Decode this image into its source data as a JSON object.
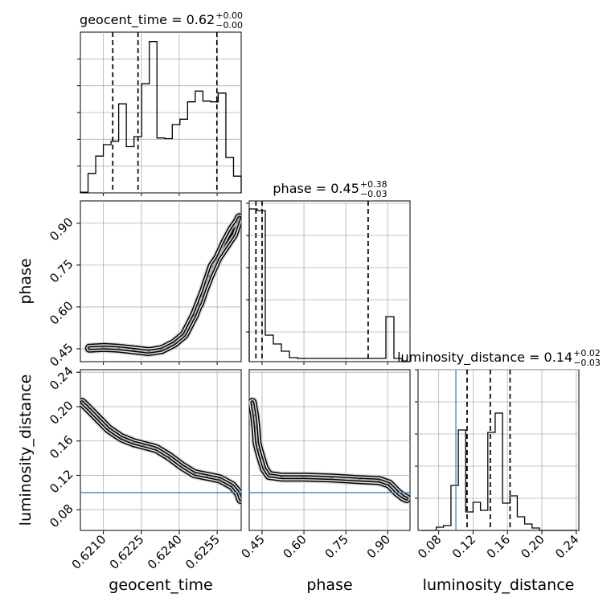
{
  "chart_data": {
    "type": "corner",
    "parameters": [
      "geocent_time",
      "phase",
      "luminosity_distance"
    ],
    "axis_labels": {
      "geocent_time": "geocent_time",
      "phase": "phase",
      "luminosity_distance": "luminosity_distance"
    },
    "titles": [
      {
        "param": "geocent_time",
        "text": "geocent_time = 0.62",
        "plus": "+0.00",
        "minus": "−0.00"
      },
      {
        "param": "phase",
        "text": "phase = 0.45",
        "plus": "+0.38",
        "minus": "−0.03"
      },
      {
        "param": "luminosity_distance",
        "text": "luminosity_distance = 0.14",
        "plus": "+0.02",
        "minus": "−0.03"
      }
    ],
    "ranges": {
      "geocent_time": [
        0.62009,
        0.62645
      ],
      "phase": [
        0.404,
        0.98
      ],
      "luminosity_distance": [
        0.056,
        0.243
      ]
    },
    "ticks": {
      "geocent_time": {
        "values": [
          0.621,
          0.6225,
          0.624,
          0.6255
        ],
        "labels": [
          "0.6210",
          "0.6225",
          "0.6240",
          "0.6255"
        ]
      },
      "phase": {
        "values": [
          0.45,
          0.6,
          0.75,
          0.9
        ],
        "labels": [
          "0.45",
          "0.60",
          "0.75",
          "0.90"
        ]
      },
      "luminosity_distance": {
        "values": [
          0.08,
          0.12,
          0.16,
          0.2,
          0.24
        ],
        "labels": [
          "0.08",
          "0.12",
          "0.16",
          "0.20",
          "0.24"
        ]
      }
    },
    "left_ticks": {
      "phase": {
        "values": [
          0.45,
          0.6,
          0.75,
          0.9
        ],
        "labels": [
          "0.45",
          "0.60",
          "0.75",
          "0.90"
        ]
      },
      "luminosity_distance": {
        "values": [
          0.08,
          0.12,
          0.16,
          0.2,
          0.24
        ],
        "labels": [
          "0.08",
          "0.12",
          "0.16",
          "0.20",
          "0.24"
        ]
      }
    },
    "quantiles": {
      "geocent_time": [
        0.62137,
        0.62237,
        0.62549
      ],
      "phase": [
        0.428,
        0.45,
        0.83
      ],
      "luminosity_distance": [
        0.113,
        0.14,
        0.163
      ]
    },
    "truths": {
      "luminosity_distance": 0.1
    },
    "histograms": {
      "geocent_time": {
        "range": [
          0.62009,
          0.62645
        ],
        "counts": [
          1,
          29,
          55,
          72,
          77,
          133,
          69,
          84,
          163,
          226,
          82,
          81,
          102,
          110,
          136,
          152,
          137,
          136,
          149,
          53,
          25
        ],
        "y_max": 240,
        "y_ticks": [
          40,
          80,
          120,
          160,
          200
        ]
      },
      "phase": {
        "range": [
          0.404,
          0.98
        ],
        "counts": [
          190,
          188,
          33,
          22,
          13,
          5,
          4,
          4,
          4,
          4,
          4,
          4,
          4,
          4,
          4,
          4,
          4,
          56,
          4,
          0
        ],
        "y_max": 200,
        "y_ticks": [
          37,
          77,
          117,
          157,
          197
        ]
      },
      "luminosity_distance": {
        "range": [
          0.06,
          0.24
        ],
        "counts": [
          0,
          0,
          4,
          6,
          56,
          125,
          23,
          35,
          25,
          122,
          146,
          34,
          43,
          17,
          8,
          3,
          0,
          0,
          0,
          0,
          0
        ],
        "y_max": 200,
        "y_ticks": [
          40,
          80,
          120,
          160,
          200
        ]
      }
    },
    "scatter": {
      "phase_vs_geocent_time": [
        [
          0.62045,
          0.452
        ],
        [
          0.621,
          0.455
        ],
        [
          0.6216,
          0.452
        ],
        [
          0.6222,
          0.446
        ],
        [
          0.6228,
          0.44
        ],
        [
          0.6233,
          0.447
        ],
        [
          0.6238,
          0.47
        ],
        [
          0.6242,
          0.5
        ],
        [
          0.6246,
          0.57
        ],
        [
          0.6249,
          0.64
        ],
        [
          0.6252,
          0.71
        ],
        [
          0.6255,
          0.77
        ],
        [
          0.6258,
          0.83
        ],
        [
          0.6261,
          0.88
        ],
        [
          0.6263,
          0.905
        ],
        [
          0.62638,
          0.92
        ],
        [
          0.62615,
          0.86
        ],
        [
          0.6253,
          0.745
        ],
        [
          0.6248,
          0.61
        ]
      ],
      "luminosity_distance_vs_geocent_time": [
        [
          0.62015,
          0.205
        ],
        [
          0.6204,
          0.198
        ],
        [
          0.6208,
          0.186
        ],
        [
          0.6212,
          0.174
        ],
        [
          0.6217,
          0.164
        ],
        [
          0.6222,
          0.158
        ],
        [
          0.6226,
          0.155
        ],
        [
          0.6231,
          0.151
        ],
        [
          0.6236,
          0.142
        ],
        [
          0.6241,
          0.131
        ],
        [
          0.6246,
          0.122
        ],
        [
          0.6251,
          0.119
        ],
        [
          0.6256,
          0.116
        ],
        [
          0.6261,
          0.108
        ],
        [
          0.62635,
          0.099
        ],
        [
          0.62643,
          0.092
        ]
      ],
      "luminosity_distance_vs_phase": [
        [
          0.415,
          0.205
        ],
        [
          0.423,
          0.19
        ],
        [
          0.428,
          0.176
        ],
        [
          0.432,
          0.158
        ],
        [
          0.438,
          0.15
        ],
        [
          0.447,
          0.14
        ],
        [
          0.458,
          0.128
        ],
        [
          0.475,
          0.12
        ],
        [
          0.52,
          0.118
        ],
        [
          0.6,
          0.118
        ],
        [
          0.7,
          0.117
        ],
        [
          0.8,
          0.115
        ],
        [
          0.87,
          0.114
        ],
        [
          0.905,
          0.11
        ],
        [
          0.935,
          0.1
        ],
        [
          0.955,
          0.095
        ],
        [
          0.968,
          0.093
        ]
      ]
    },
    "grid": true
  }
}
